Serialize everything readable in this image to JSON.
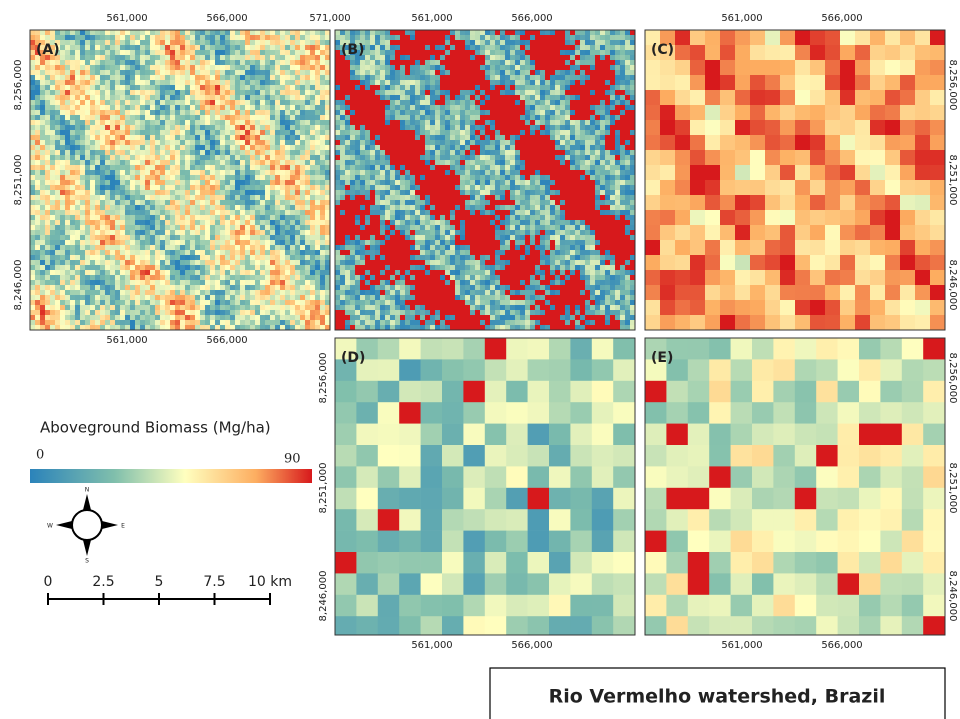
{
  "panels": [
    {
      "label": "(A)",
      "top_ticks": [
        "561,000",
        "566,000",
        "571,000"
      ],
      "bottom_ticks": [
        "561,000",
        "566,000"
      ],
      "left_ticks": [
        "8,256,000",
        "8,251,000",
        "8,246,000"
      ]
    },
    {
      "label": "(B)",
      "top_ticks": [
        "561,000",
        "566,000"
      ]
    },
    {
      "label": "(C)",
      "top_ticks": [
        "561,000",
        "566,000"
      ],
      "right_ticks": [
        "8,256,000",
        "8,251,000",
        "8,246,000"
      ]
    },
    {
      "label": "(D)",
      "bottom_ticks": [
        "561,000",
        "566,000"
      ],
      "left_ticks": [
        "8,256,000",
        "8,251,000",
        "8,246,000"
      ]
    },
    {
      "label": "(E)",
      "bottom_ticks": [
        "561,000",
        "566,000"
      ],
      "right_ticks": [
        "8,256,000",
        "8,251,000",
        "8,246,000"
      ]
    }
  ],
  "legend": {
    "title": "Aboveground Biomass (Mg/ha)",
    "min": "0",
    "max": "90"
  },
  "compass": {
    "n": "N",
    "s": "S",
    "e": "E",
    "w": "W"
  },
  "scale_bar": [
    "0",
    "2.5",
    "5",
    "7.5",
    "10 km"
  ],
  "title": "Rio Vermelho watershed, Brazil"
}
